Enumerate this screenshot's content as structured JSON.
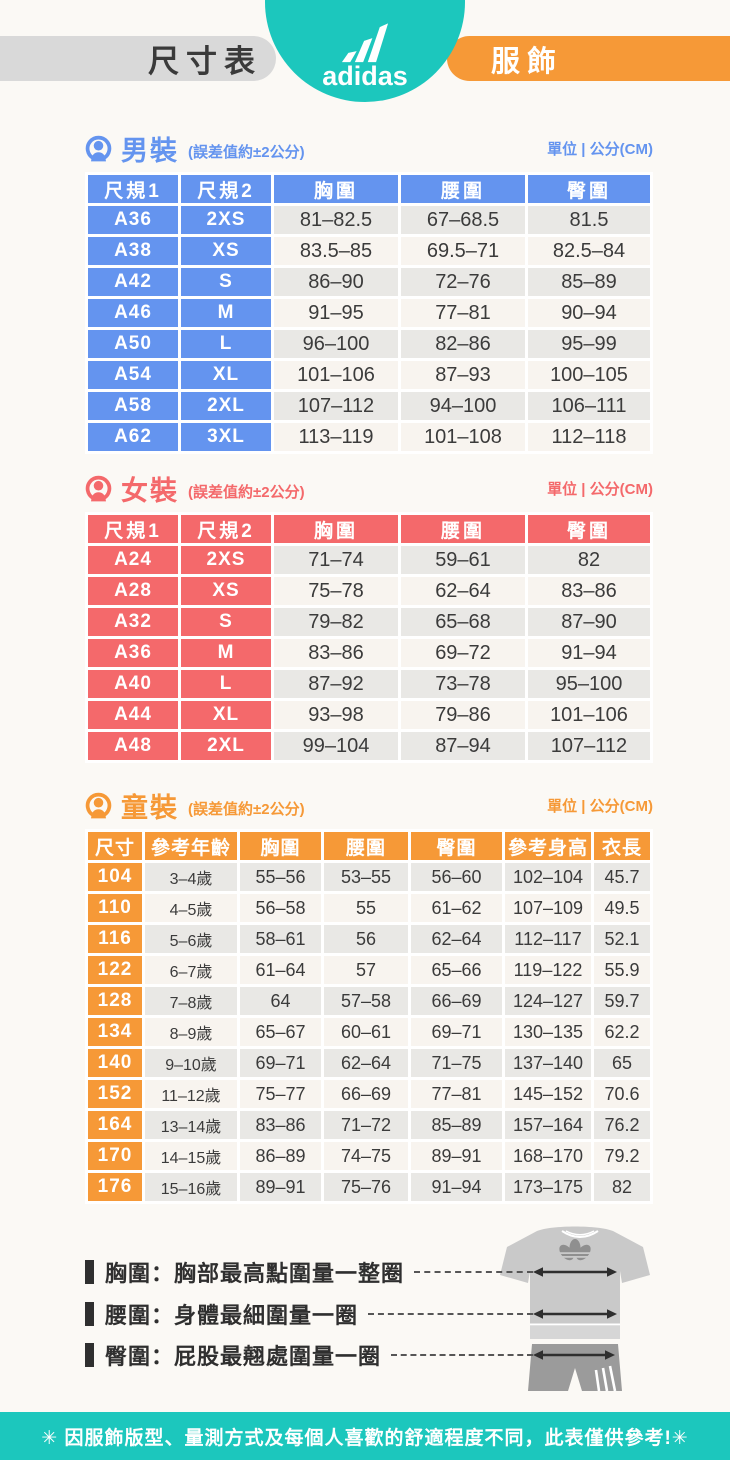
{
  "header": {
    "title_pill": "尺寸表",
    "brand": "adidas",
    "category_pill": "服飾"
  },
  "sections": [
    {
      "id": "men",
      "title": "男裝",
      "tolerance_note": "(誤差值約±2公分)",
      "unit_label": "單位 | 公分(CM)",
      "color": "#6494EF",
      "key_cols": 2,
      "headers": [
        "尺規1",
        "尺規2",
        "胸圍",
        "腰圍",
        "臀圍"
      ],
      "rows": [
        [
          "A36",
          "2XS",
          "81–82.5",
          "67–68.5",
          "81.5"
        ],
        [
          "A38",
          "XS",
          "83.5–85",
          "69.5–71",
          "82.5–84"
        ],
        [
          "A42",
          "S",
          "86–90",
          "72–76",
          "85–89"
        ],
        [
          "A46",
          "M",
          "91–95",
          "77–81",
          "90–94"
        ],
        [
          "A50",
          "L",
          "96–100",
          "82–86",
          "95–99"
        ],
        [
          "A54",
          "XL",
          "101–106",
          "87–93",
          "100–105"
        ],
        [
          "A58",
          "2XL",
          "107–112",
          "94–100",
          "106–111"
        ],
        [
          "A62",
          "3XL",
          "113–119",
          "101–108",
          "112–118"
        ]
      ]
    },
    {
      "id": "women",
      "title": "女裝",
      "tolerance_note": "(誤差值約±2公分)",
      "unit_label": "單位 | 公分(CM)",
      "color": "#F4696B",
      "key_cols": 2,
      "headers": [
        "尺規1",
        "尺規2",
        "胸圍",
        "腰圍",
        "臀圍"
      ],
      "rows": [
        [
          "A24",
          "2XS",
          "71–74",
          "59–61",
          "82"
        ],
        [
          "A28",
          "XS",
          "75–78",
          "62–64",
          "83–86"
        ],
        [
          "A32",
          "S",
          "79–82",
          "65–68",
          "87–90"
        ],
        [
          "A36",
          "M",
          "83–86",
          "69–72",
          "91–94"
        ],
        [
          "A40",
          "L",
          "87–92",
          "73–78",
          "95–100"
        ],
        [
          "A44",
          "XL",
          "93–98",
          "79–86",
          "101–106"
        ],
        [
          "A48",
          "2XL",
          "99–104",
          "87–94",
          "107–112"
        ]
      ]
    },
    {
      "id": "kids",
      "title": "童裝",
      "tolerance_note": "(誤差值約±2公分)",
      "unit_label": "單位 | 公分(CM)",
      "color": "#F69937",
      "key_cols": 1,
      "headers": [
        "尺寸",
        "參考年齡",
        "胸圍",
        "腰圍",
        "臀圍",
        "參考身高",
        "衣長"
      ],
      "rows": [
        [
          "104",
          "3–4歲",
          "55–56",
          "53–55",
          "56–60",
          "102–104",
          "45.7"
        ],
        [
          "110",
          "4–5歲",
          "56–58",
          "55",
          "61–62",
          "107–109",
          "49.5"
        ],
        [
          "116",
          "5–6歲",
          "58–61",
          "56",
          "62–64",
          "112–117",
          "52.1"
        ],
        [
          "122",
          "6–7歲",
          "61–64",
          "57",
          "65–66",
          "119–122",
          "55.9"
        ],
        [
          "128",
          "7–8歲",
          "64",
          "57–58",
          "66–69",
          "124–127",
          "59.7"
        ],
        [
          "134",
          "8–9歲",
          "65–67",
          "60–61",
          "69–71",
          "130–135",
          "62.2"
        ],
        [
          "140",
          "9–10歲",
          "69–71",
          "62–64",
          "71–75",
          "137–140",
          "65"
        ],
        [
          "152",
          "11–12歲",
          "75–77",
          "66–69",
          "77–81",
          "145–152",
          "70.6"
        ],
        [
          "164",
          "13–14歲",
          "83–86",
          "71–72",
          "85–89",
          "157–164",
          "76.2"
        ],
        [
          "170",
          "14–15歲",
          "86–89",
          "74–75",
          "89–91",
          "168–170",
          "79.2"
        ],
        [
          "176",
          "15–16歲",
          "89–91",
          "75–76",
          "91–94",
          "173–175",
          "82"
        ]
      ]
    }
  ],
  "legend": {
    "items": [
      {
        "label": "胸圍：胸部最高點圍量一整圈"
      },
      {
        "label": "腰圍：身體最細圍量一圈"
      },
      {
        "label": "臀圍：屁股最翹處圍量一圈"
      }
    ]
  },
  "footer": {
    "note": "✳ 因服飾版型、量測方式及每個人喜歡的舒適程度不同，此表僅供參考!✳"
  },
  "colors": {
    "teal": "#1CC7BD",
    "orange": "#F69937",
    "pill_gray": "#D9D9D9",
    "row_gray": "#E9E8E5",
    "row_cream": "#F8F4EF",
    "page_bg": "#FBF9F5"
  }
}
